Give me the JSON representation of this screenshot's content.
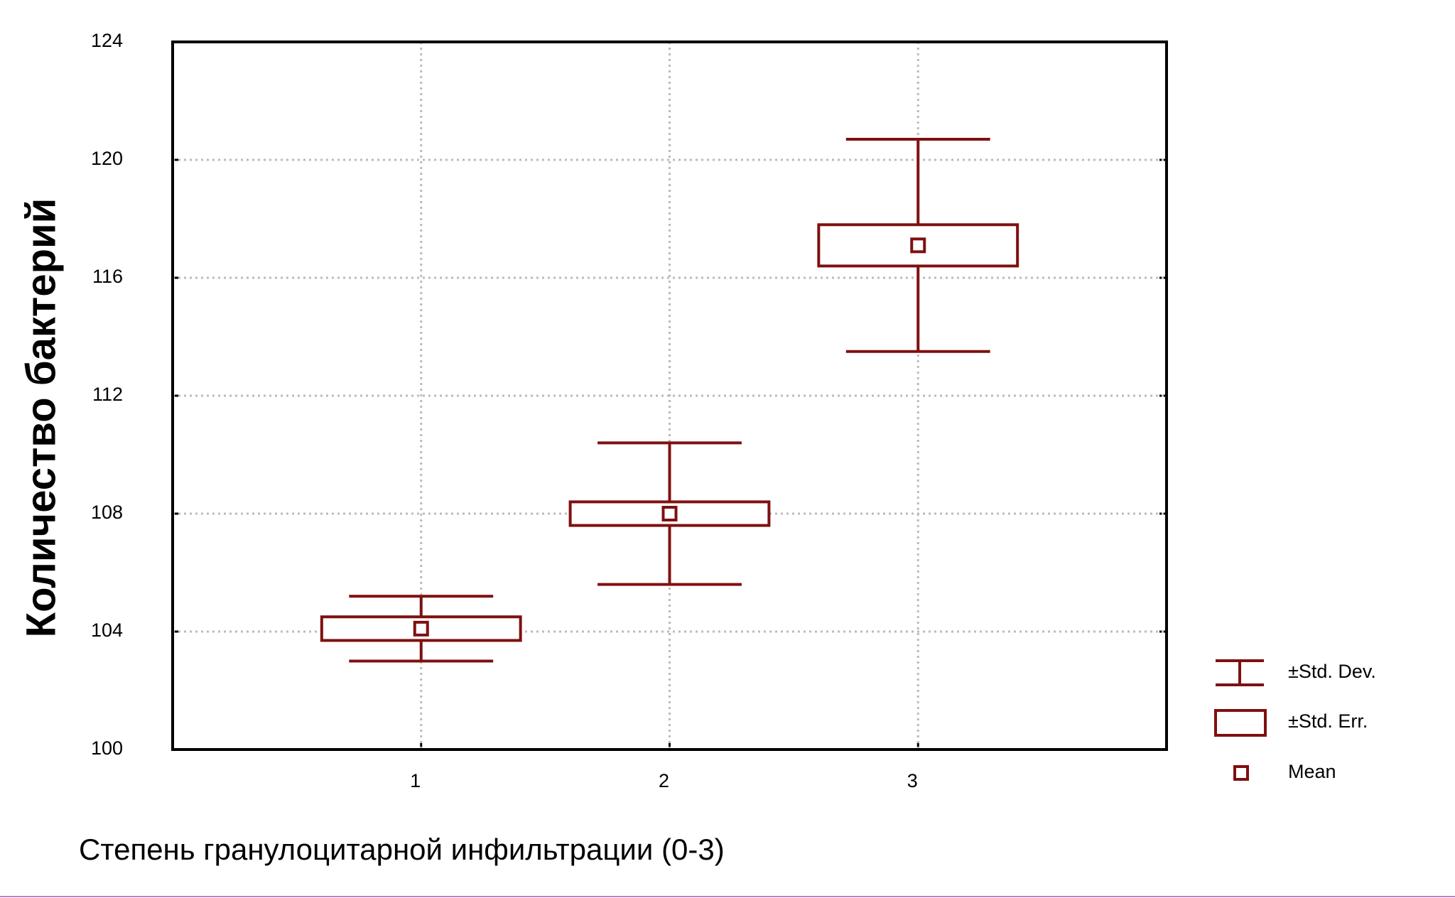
{
  "chart_data": {
    "type": "meanbox",
    "x_label": "Степень гранулоцитарной инфильтрации (0-3)",
    "y_label": "Количество бактерий",
    "x": [
      1,
      2,
      3
    ],
    "mean": [
      104.1,
      108,
      117.1
    ],
    "se": [
      0.4,
      0.4,
      0.7
    ],
    "sd": [
      1.1,
      2.4,
      3.6
    ],
    "color": "#7f1010",
    "xlim": [
      0,
      4
    ],
    "xticks": [
      1,
      2,
      3
    ],
    "ylim": [
      100,
      124
    ],
    "yticks": [
      100,
      104,
      108,
      112,
      116,
      120,
      124
    ],
    "grid": true,
    "legend": {
      "sd": "±Std. Dev.",
      "se": "±Std. Err.",
      "mean": "Mean"
    },
    "legend_position": "right"
  }
}
